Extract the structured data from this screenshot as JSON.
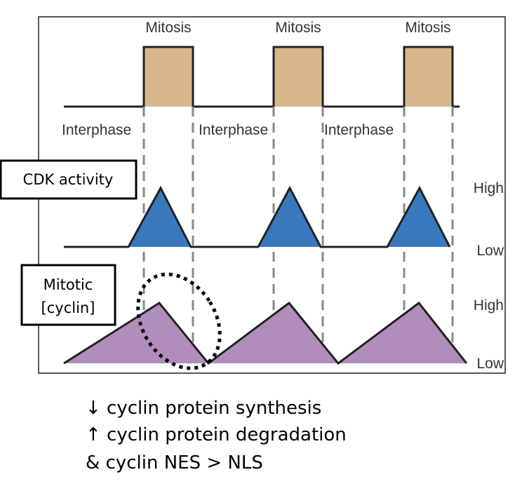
{
  "diagram": {
    "phase_labels": {
      "mitosis": [
        "Mitosis",
        "Mitosis",
        "Mitosis"
      ],
      "interphase": [
        "Interphase",
        "Interphase",
        "Interphase"
      ]
    },
    "cdk": {
      "label": "CDK activity",
      "high": "High",
      "low": "Low"
    },
    "cyclin": {
      "label_line1": "Mitotic",
      "label_line2": "[cyclin]",
      "high": "High",
      "low": "Low"
    },
    "notes": [
      "↓ cyclin protein synthesis",
      "↑ cyclin protein degradation",
      "& cyclin NES > NLS"
    ],
    "colors": {
      "mitosis": "#d8b88a",
      "cdk": "#3a78be",
      "cyclin": "#b18dbb",
      "dashed": "#888888"
    }
  }
}
